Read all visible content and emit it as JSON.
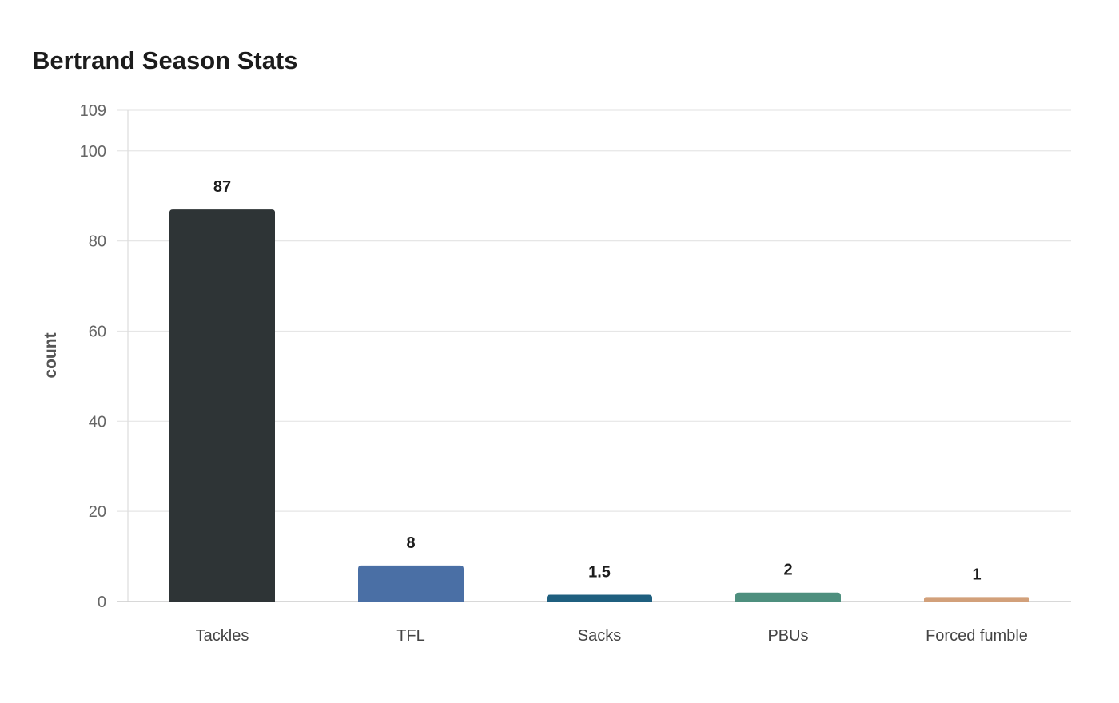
{
  "chart_data": {
    "type": "bar",
    "title": "Bertrand Season Stats",
    "xlabel": "",
    "ylabel": "count",
    "categories": [
      "Tackles",
      "TFL",
      "Sacks",
      "PBUs",
      "Forced fumble"
    ],
    "values": [
      87,
      8,
      1.5,
      2,
      1
    ],
    "value_labels": [
      "87",
      "8",
      "1.5",
      "2",
      "1"
    ],
    "colors": [
      "#2e3436",
      "#4a6fa5",
      "#1f5f7f",
      "#4e8f7e",
      "#d2a07a"
    ],
    "ylim": [
      0,
      109
    ],
    "yticks": [
      0,
      20,
      40,
      60,
      80,
      100,
      109
    ],
    "grid": true,
    "legend": "none"
  }
}
